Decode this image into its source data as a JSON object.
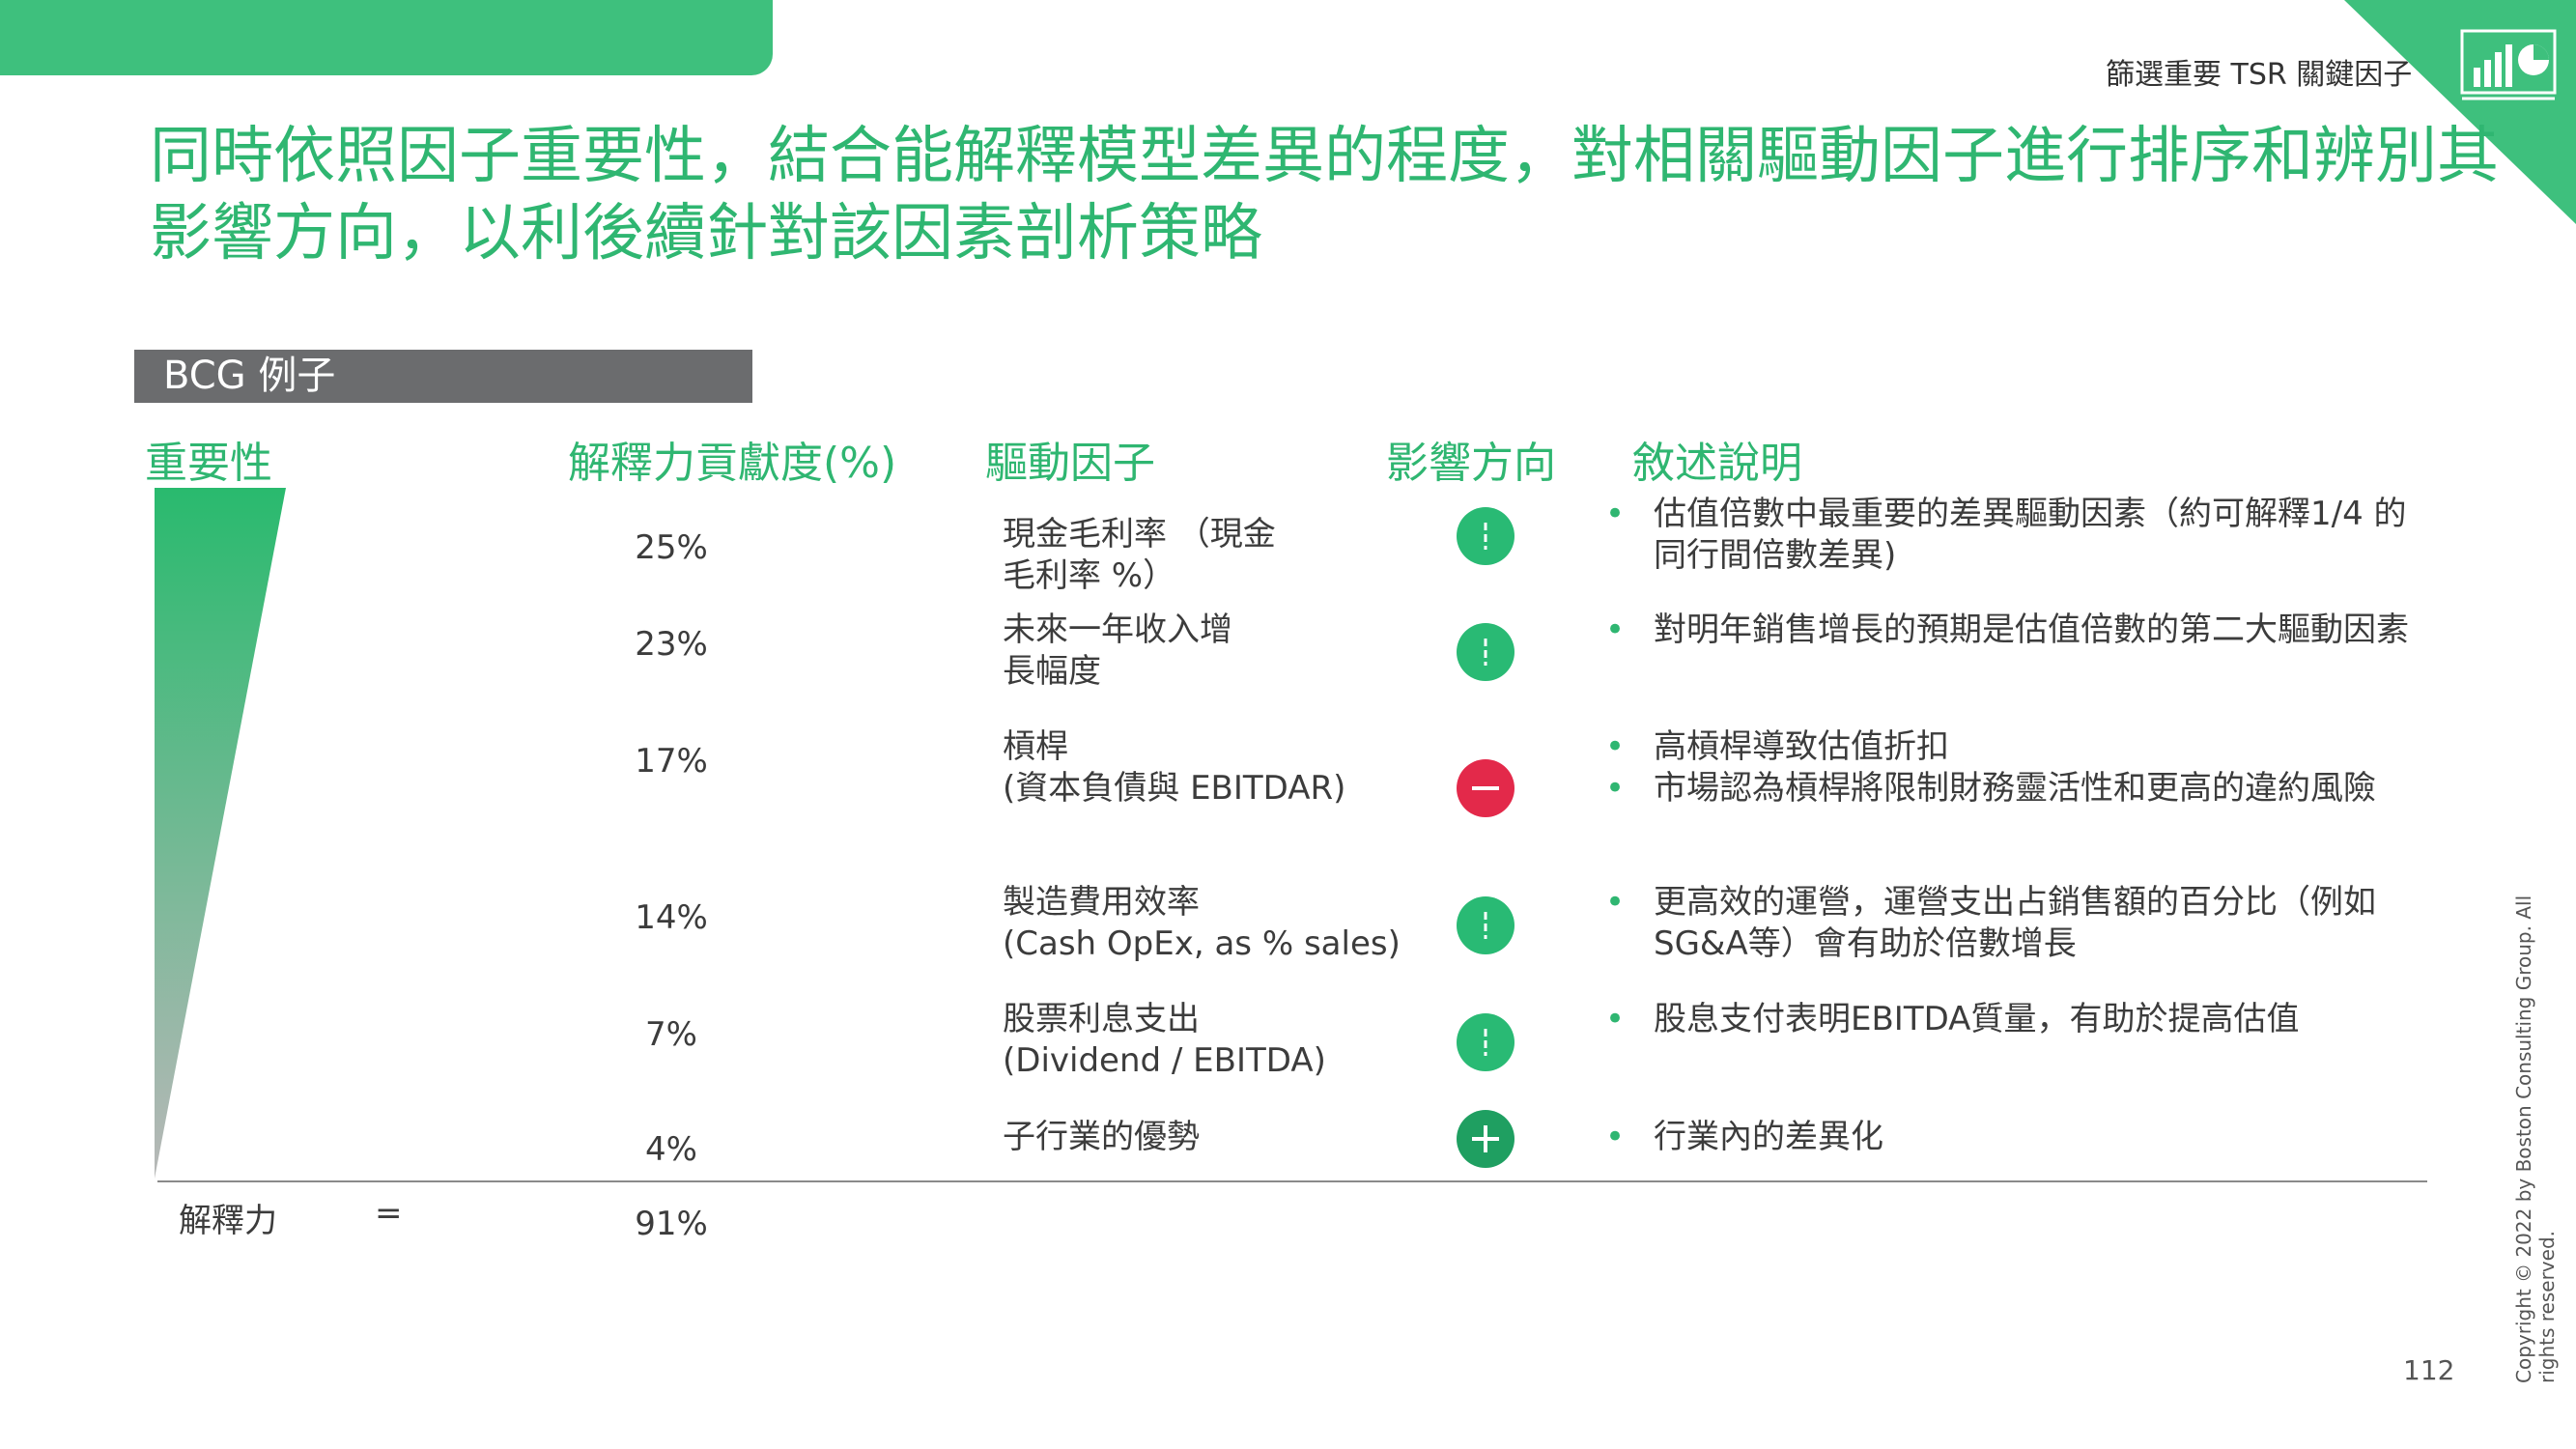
{
  "header": {
    "section_tag": "篩選重要 TSR 關鍵因子",
    "title": "同時依照因子重要性，結合能解釋模型差異的程度，對相關驅動因子進行排序和辨別其影響方向，以利後續針對該因素剖析策略",
    "logo_icon": "chart-report-icon"
  },
  "tag": "BCG 例子",
  "columns": {
    "importance": "重要性",
    "contribution": "解釋力貢獻度(%)",
    "driver": "驅動因子",
    "direction": "影響方向",
    "description": "敘述說明"
  },
  "rows": [
    {
      "pct": "25%",
      "driver_line1": "現金毛利率 （現金",
      "driver_line2": "毛利率 %）",
      "direction": "positive",
      "desc": [
        "估值倍數中最重要的差異驅動因素（約可解釋1/4 的同行間倍數差異)"
      ]
    },
    {
      "pct": "23%",
      "driver_line1": "未來一年收入增",
      "driver_line2": "長幅度",
      "direction": "positive",
      "desc": [
        "對明年銷售增長的預期是估值倍數的第二大驅動因素"
      ]
    },
    {
      "pct": "17%",
      "driver_line1": "槓桿",
      "driver_line2": "(資本負債與 EBITDAR)",
      "direction": "negative",
      "desc": [
        "高槓桿導致估值折扣",
        "市場認為槓桿將限制財務靈活性和更高的違約風險"
      ]
    },
    {
      "pct": "14%",
      "driver_line1": "製造費用效率",
      "driver_line2": "(Cash OpEx, as % sales)",
      "direction": "positive",
      "desc": [
        "更高效的運營，運營支出占銷售額的百分比（例如SG&A等）會有助於倍數增長"
      ]
    },
    {
      "pct": "7%",
      "driver_line1": "股票利息支出",
      "driver_line2": "(Dividend / EBITDA)",
      "direction": "positive",
      "desc": [
        "股息支付表明EBITDA質量，有助於提高估值"
      ]
    },
    {
      "pct": "4%",
      "driver_line1": "子行業的優勢",
      "driver_line2": "",
      "direction": "plus",
      "desc": [
        "行業內的差異化"
      ]
    }
  ],
  "total": {
    "label": "解釋力",
    "equals": "=",
    "pct": "91%"
  },
  "footer": {
    "copyright": "Copyright © 2022 by Boston Consulting Group. All rights reserved.",
    "page_number": "112"
  },
  "colors": {
    "accent": "#3ec07d",
    "title_green": "#2fb671",
    "negative": "#e3294a",
    "tag_gray": "#6b6c6e"
  }
}
